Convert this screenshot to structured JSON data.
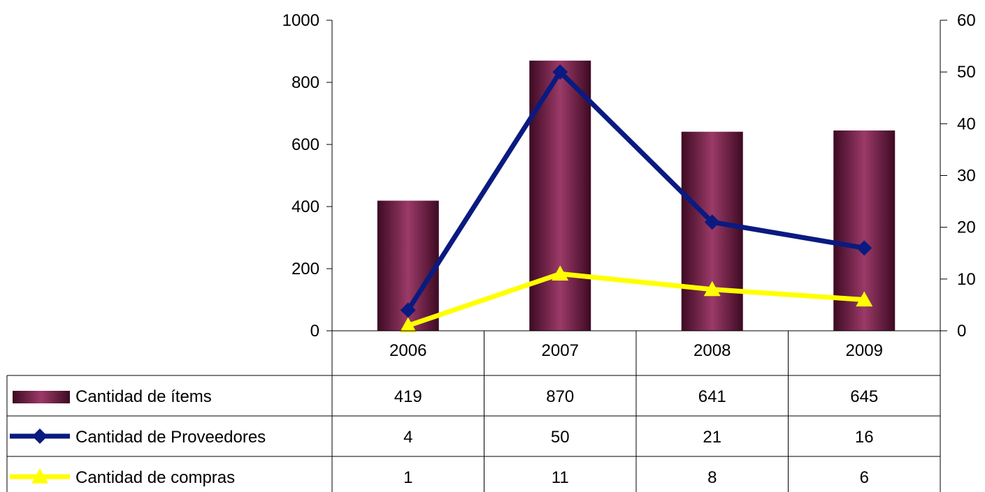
{
  "chart_data": {
    "type": "bar",
    "categories": [
      "2006",
      "2007",
      "2008",
      "2009"
    ],
    "series": [
      {
        "name": "Cantidad de ítems",
        "kind": "bar",
        "axis": "left",
        "values": [
          419,
          870,
          641,
          645
        ],
        "color": "#8e2a5a"
      },
      {
        "name": "Cantidad de Proveedores",
        "kind": "line",
        "marker": "diamond",
        "axis": "right",
        "values": [
          4,
          50,
          21,
          16
        ],
        "color": "#0a1a80"
      },
      {
        "name": "Cantidad de compras",
        "kind": "line",
        "marker": "triangle",
        "axis": "right",
        "values": [
          1,
          11,
          8,
          6
        ],
        "color": "#ffff00"
      }
    ],
    "y_left": {
      "ylim": [
        0,
        1000
      ],
      "ticks": [
        "0",
        "200",
        "400",
        "600",
        "800",
        "1000"
      ]
    },
    "y_right": {
      "ylim": [
        0,
        60
      ],
      "ticks": [
        "0",
        "10",
        "20",
        "30",
        "40",
        "50",
        "60"
      ]
    },
    "grid": false,
    "legend": "data-table-below",
    "data_table": {
      "rows": [
        {
          "label": "Cantidad de ítems",
          "cells": [
            "419",
            "870",
            "641",
            "645"
          ]
        },
        {
          "label": "Cantidad de Proveedores",
          "cells": [
            "4",
            "50",
            "21",
            "16"
          ]
        },
        {
          "label": "Cantidad de compras",
          "cells": [
            "1",
            "11",
            "8",
            "6"
          ]
        }
      ]
    }
  }
}
